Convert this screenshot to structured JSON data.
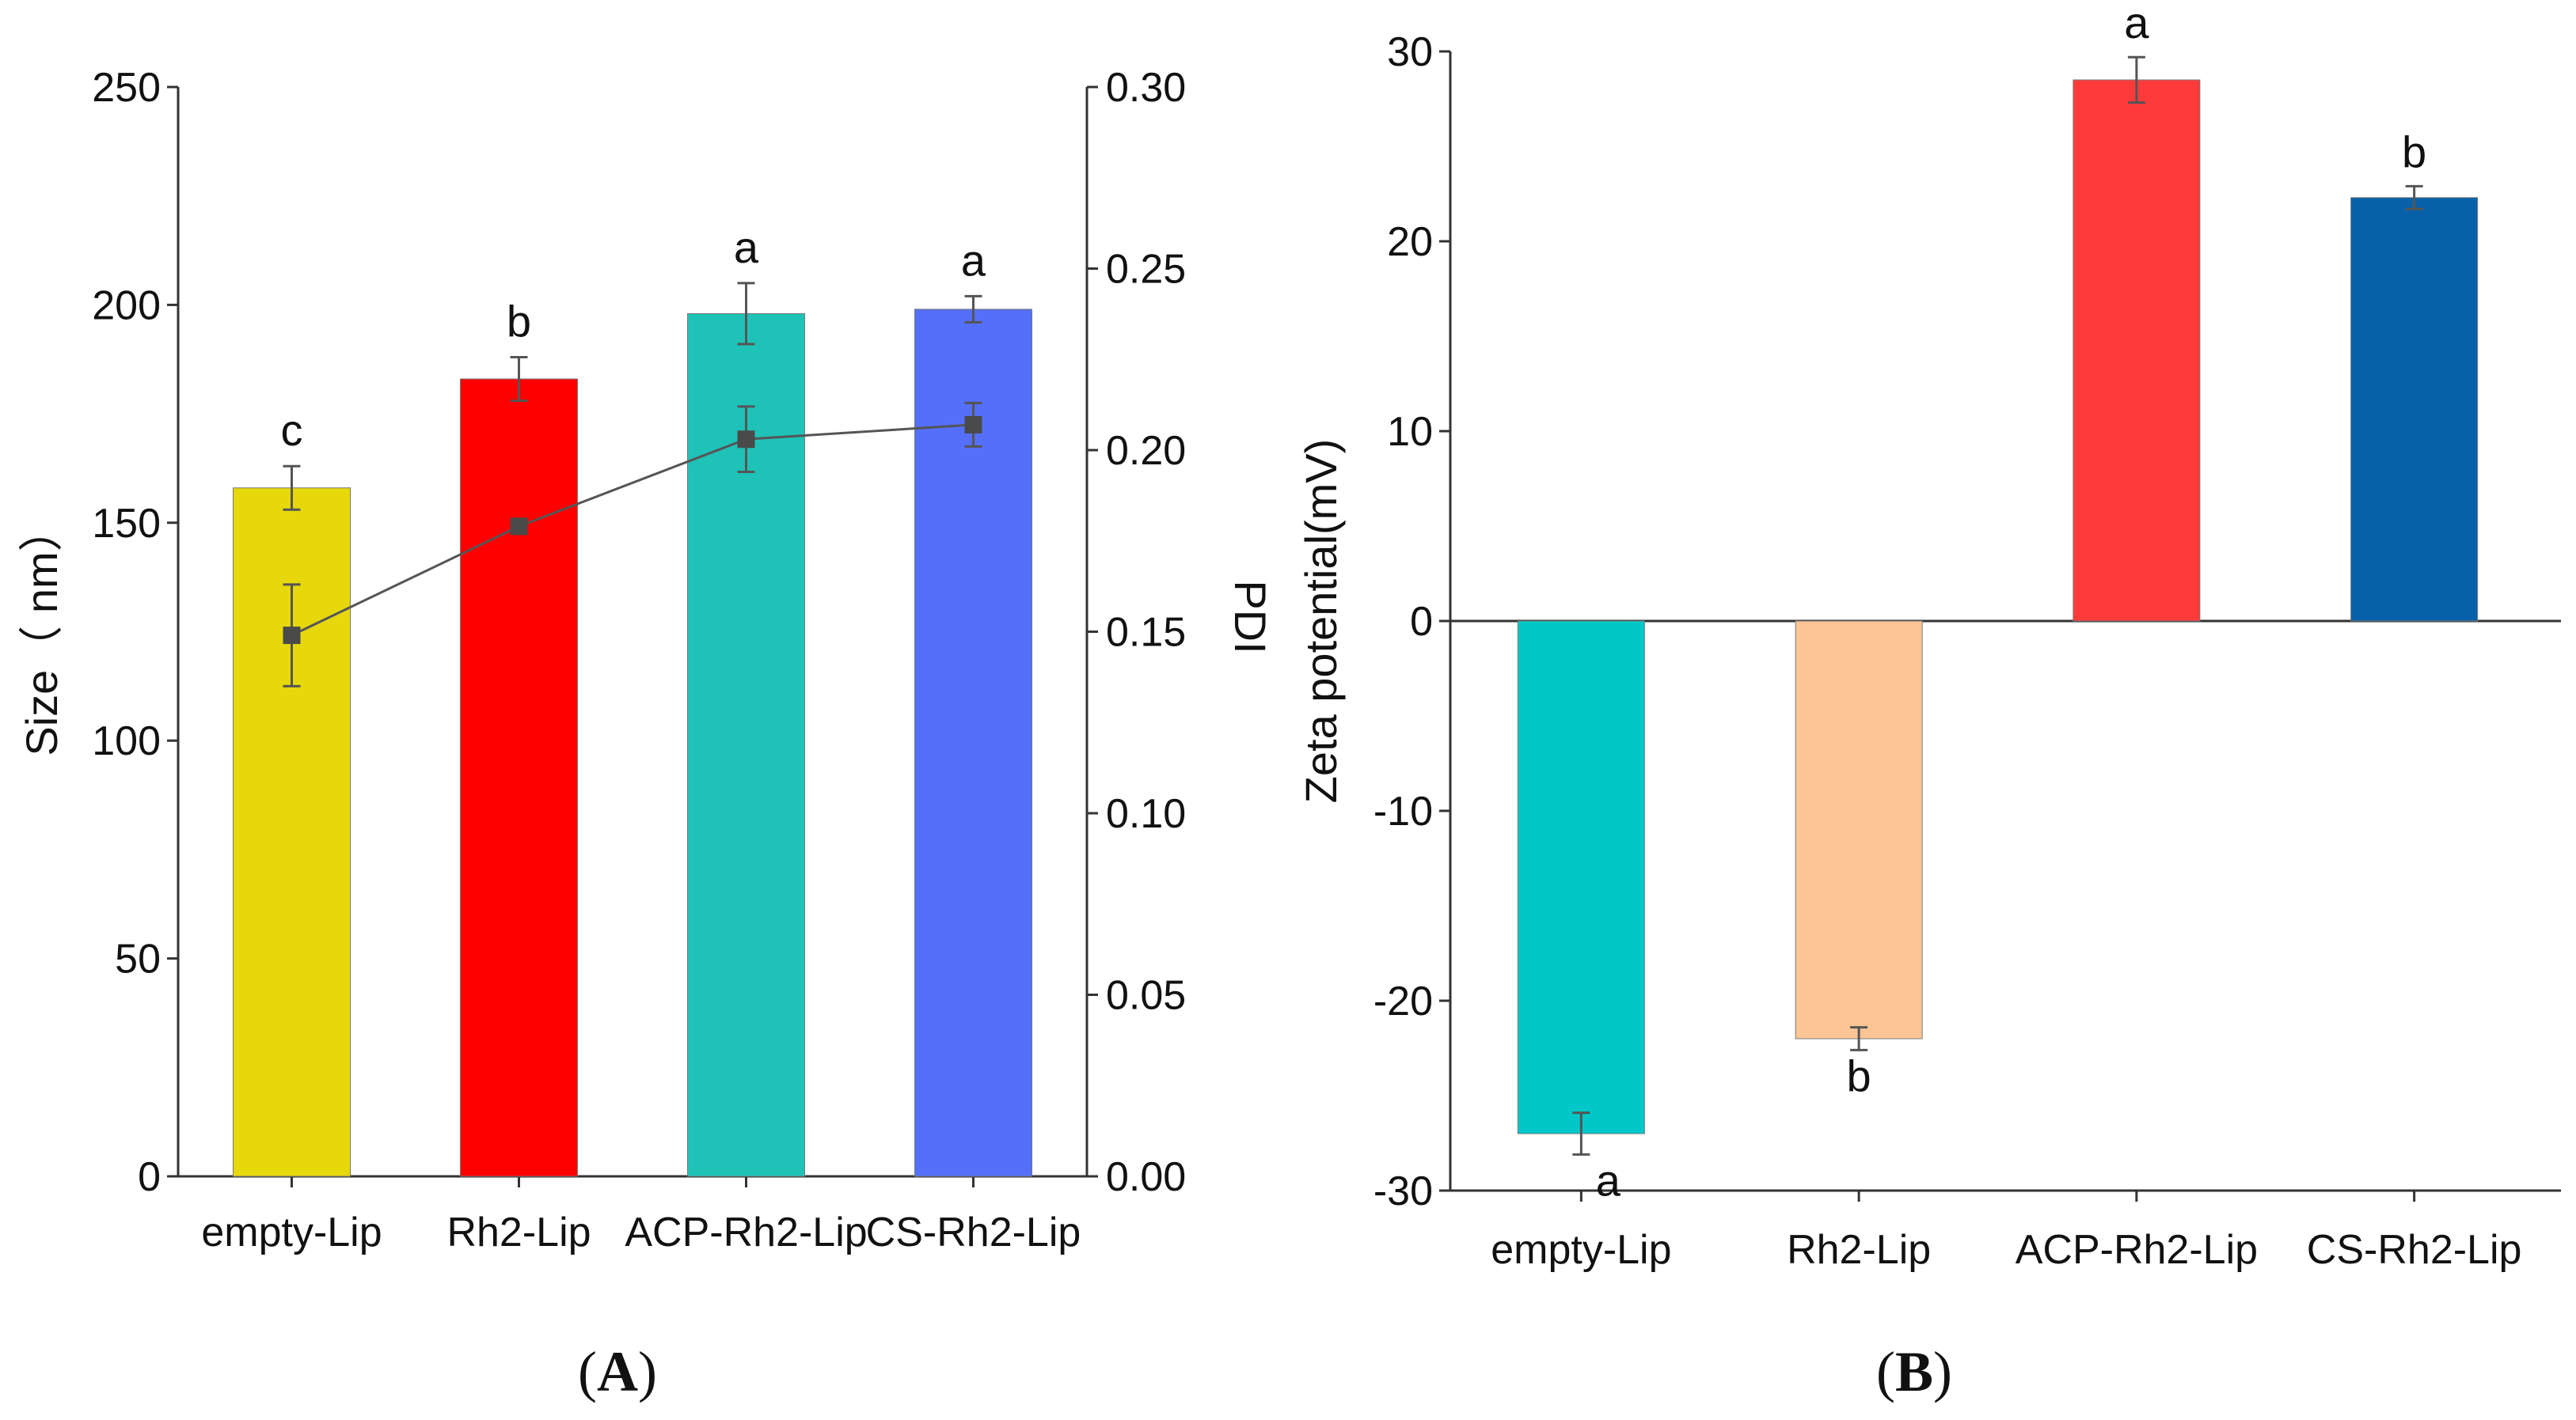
{
  "panels": {
    "A": {
      "label_open": "(",
      "label_letter": "A",
      "label_close": ")"
    },
    "B": {
      "label_open": "(",
      "label_letter": "B",
      "label_close": ")"
    }
  },
  "chart_data": [
    {
      "type": "bar",
      "panel": "A",
      "categories": [
        "empty-Lip",
        "Rh2-Lip",
        "ACP-Rh2-Lip",
        "CS-Rh2-Lip"
      ],
      "ylabel": "Size（ nm）",
      "y2label": "PDI",
      "ylim": [
        0,
        250
      ],
      "y2lim": [
        0,
        0.3
      ],
      "yticks": [
        "0",
        "50",
        "100",
        "150",
        "200",
        "250"
      ],
      "y2ticks": [
        "0.00",
        "0.05",
        "0.10",
        "0.15",
        "0.20",
        "0.25",
        "0.30"
      ],
      "series": [
        {
          "values": [
            158,
            183,
            198,
            199
          ],
          "errors": [
            5,
            5,
            7,
            3
          ],
          "colors": [
            "#e6d80b",
            "#ff0000",
            "#1fc2b7",
            "#5470fb"
          ],
          "significance": [
            "c",
            "b",
            "a",
            "a"
          ]
        },
        {
          "axis": "right",
          "type": "line",
          "values": [
            0.149,
            0.179,
            0.203,
            0.207
          ],
          "errors": [
            0.014,
            0.002,
            0.009,
            0.006
          ],
          "color": "#555555",
          "marker": "square"
        }
      ]
    },
    {
      "type": "bar",
      "panel": "B",
      "categories": [
        "empty-Lip",
        "Rh2-Lip",
        "ACP-Rh2-Lip",
        "CS-Rh2-Lip"
      ],
      "ylabel": "Zeta potential(mV)",
      "ylim": [
        -30,
        30
      ],
      "yticks": [
        "-30",
        "-20",
        "-10",
        "0",
        "10",
        "20",
        "30"
      ],
      "series": [
        {
          "values": [
            -27,
            -22,
            28.5,
            22.3
          ],
          "errors": [
            1.1,
            0.6,
            1.2,
            0.6
          ],
          "colors": [
            "#00c8c8",
            "#fcc593",
            "#ff3a3a",
            "#0861a8"
          ],
          "significance": [
            "a",
            "b",
            "a",
            "b"
          ]
        }
      ]
    }
  ]
}
